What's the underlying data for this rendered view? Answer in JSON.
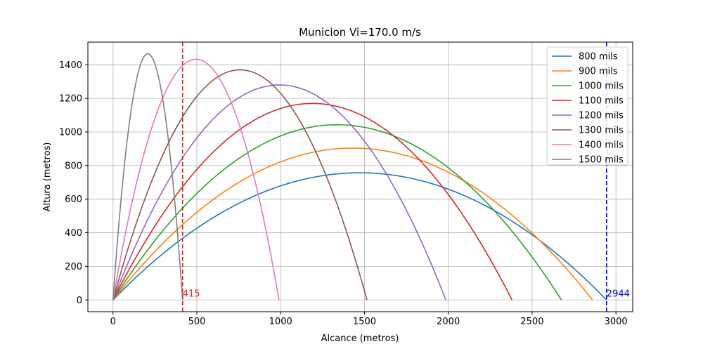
{
  "chart_data": {
    "type": "line",
    "title": "Municion Vi=170.0 m/s",
    "xlabel": "Alcance (metros)",
    "ylabel": "Altura (metros)",
    "xlim": [
      -150,
      3100
    ],
    "ylim": [
      -70,
      1535
    ],
    "xticks": [
      0,
      500,
      1000,
      1500,
      2000,
      2500,
      3000
    ],
    "yticks": [
      0,
      200,
      400,
      600,
      800,
      1000,
      1200,
      1400
    ],
    "grid": true,
    "legend_position": "top-right",
    "series": [
      {
        "name": "800 mils",
        "color": "#1f77b4",
        "range": 2944,
        "apex": 757
      },
      {
        "name": "900 mils",
        "color": "#ff7f0e",
        "range": 2860,
        "apex": 904
      },
      {
        "name": "1000 mils",
        "color": "#2ca02c",
        "range": 2675,
        "apex": 1043
      },
      {
        "name": "1100 mils",
        "color": "#d62728",
        "range": 2380,
        "apex": 1170
      },
      {
        "name": "1200 mils",
        "color": "#9467bd",
        "range": 1985,
        "apex": 1280
      },
      {
        "name": "1300 mils",
        "color": "#8c564b",
        "range": 1515,
        "apex": 1370
      },
      {
        "name": "1400 mils",
        "color": "#e377c2",
        "range": 990,
        "apex": 1433
      },
      {
        "name": "1500 mils",
        "color": "#7f7f7f",
        "range": 415,
        "apex": 1466
      }
    ],
    "vlines": [
      {
        "x": 415,
        "label": "415",
        "color": "#d62728"
      },
      {
        "x": 2944,
        "label": "2944",
        "color": "#0000ff"
      }
    ]
  }
}
